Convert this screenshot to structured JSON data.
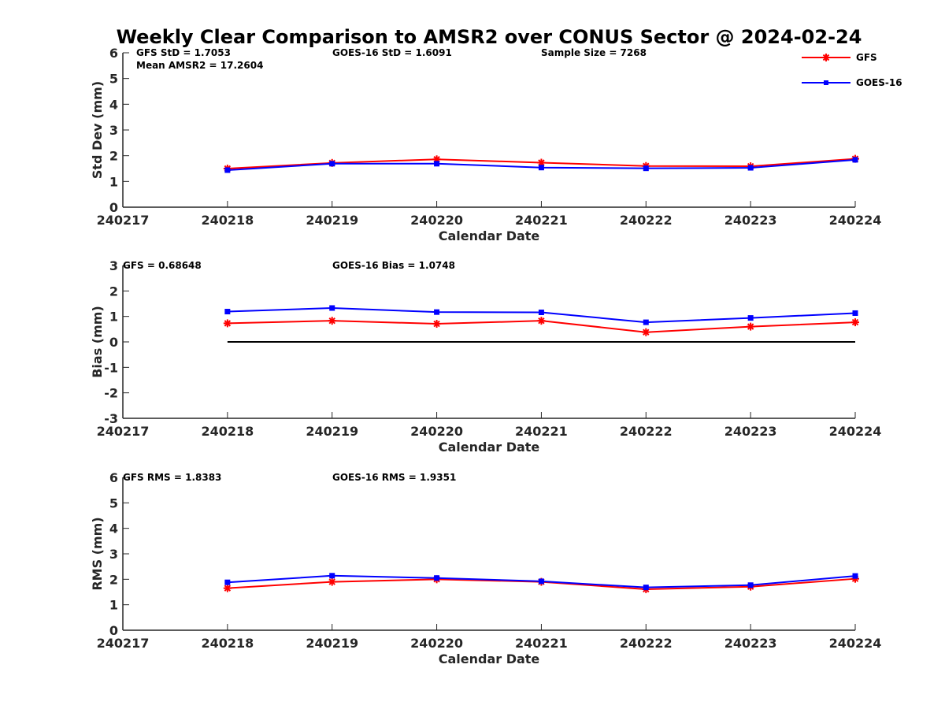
{
  "title": "Weekly Clear Comparison to AMSR2 over CONUS Sector @ 2024-02-24",
  "legend": {
    "placement": "top-right",
    "entries": [
      {
        "label": "GFS",
        "color": "#ff0000",
        "marker": "asterisk"
      },
      {
        "label": "GOES-16",
        "color": "#0000ff",
        "marker": "square"
      }
    ]
  },
  "colors": {
    "GFS": "#ff0000",
    "GOES-16": "#0000ff",
    "zero_line": "#000000"
  },
  "panels": {
    "std": {
      "ann": [
        "GFS StD = 1.7053",
        "Mean AMSR2 = 17.2604",
        "GOES-16 StD = 1.6091",
        "Sample Size = 7268"
      ]
    },
    "bias": {
      "ann": [
        "GFS = 0.68648",
        "GOES-16 Bias  = 1.0748"
      ]
    },
    "rms": {
      "ann": [
        "GFS RMS = 1.8383",
        "GOES-16 RMS = 1.9351"
      ]
    }
  },
  "chart_data": [
    {
      "type": "line",
      "title": "Weekly Clear Comparison to AMSR2 over CONUS Sector @ 2024-02-24",
      "xlabel": "Calendar Date",
      "ylabel": "Std Dev (mm)",
      "xticks": [
        "240217",
        "240218",
        "240219",
        "240220",
        "240221",
        "240222",
        "240223",
        "240224"
      ],
      "x": [
        "240218",
        "240219",
        "240220",
        "240221",
        "240222",
        "240223",
        "240224"
      ],
      "ylim": [
        0,
        6
      ],
      "yticks": [
        0,
        1,
        2,
        3,
        4,
        5,
        6
      ],
      "grid": false,
      "series": [
        {
          "name": "GFS",
          "values": [
            1.5,
            1.72,
            1.86,
            1.73,
            1.6,
            1.59,
            1.88
          ]
        },
        {
          "name": "GOES-16",
          "values": [
            1.44,
            1.69,
            1.69,
            1.54,
            1.51,
            1.53,
            1.84
          ]
        }
      ]
    },
    {
      "type": "line",
      "xlabel": "Calendar Date",
      "ylabel": "Bias (mm)",
      "xticks": [
        "240217",
        "240218",
        "240219",
        "240220",
        "240221",
        "240222",
        "240223",
        "240224"
      ],
      "x": [
        "240218",
        "240219",
        "240220",
        "240221",
        "240222",
        "240223",
        "240224"
      ],
      "ylim": [
        -3,
        3
      ],
      "yticks": [
        -3,
        -2,
        -1,
        0,
        1,
        2,
        3
      ],
      "grid": false,
      "reference_line": 0,
      "series": [
        {
          "name": "GFS",
          "values": [
            0.73,
            0.83,
            0.71,
            0.83,
            0.38,
            0.6,
            0.77
          ]
        },
        {
          "name": "GOES-16",
          "values": [
            1.19,
            1.33,
            1.17,
            1.16,
            0.77,
            0.94,
            1.13
          ]
        }
      ]
    },
    {
      "type": "line",
      "xlabel": "Calendar Date",
      "ylabel": "RMS (mm)",
      "xticks": [
        "240217",
        "240218",
        "240219",
        "240220",
        "240221",
        "240222",
        "240223",
        "240224"
      ],
      "x": [
        "240218",
        "240219",
        "240220",
        "240221",
        "240222",
        "240223",
        "240224"
      ],
      "ylim": [
        0,
        6
      ],
      "yticks": [
        0,
        1,
        2,
        3,
        4,
        5,
        6
      ],
      "grid": false,
      "series": [
        {
          "name": "GFS",
          "values": [
            1.65,
            1.9,
            2.0,
            1.9,
            1.61,
            1.71,
            2.02
          ]
        },
        {
          "name": "GOES-16",
          "values": [
            1.88,
            2.14,
            2.05,
            1.92,
            1.68,
            1.77,
            2.13
          ]
        }
      ]
    }
  ]
}
